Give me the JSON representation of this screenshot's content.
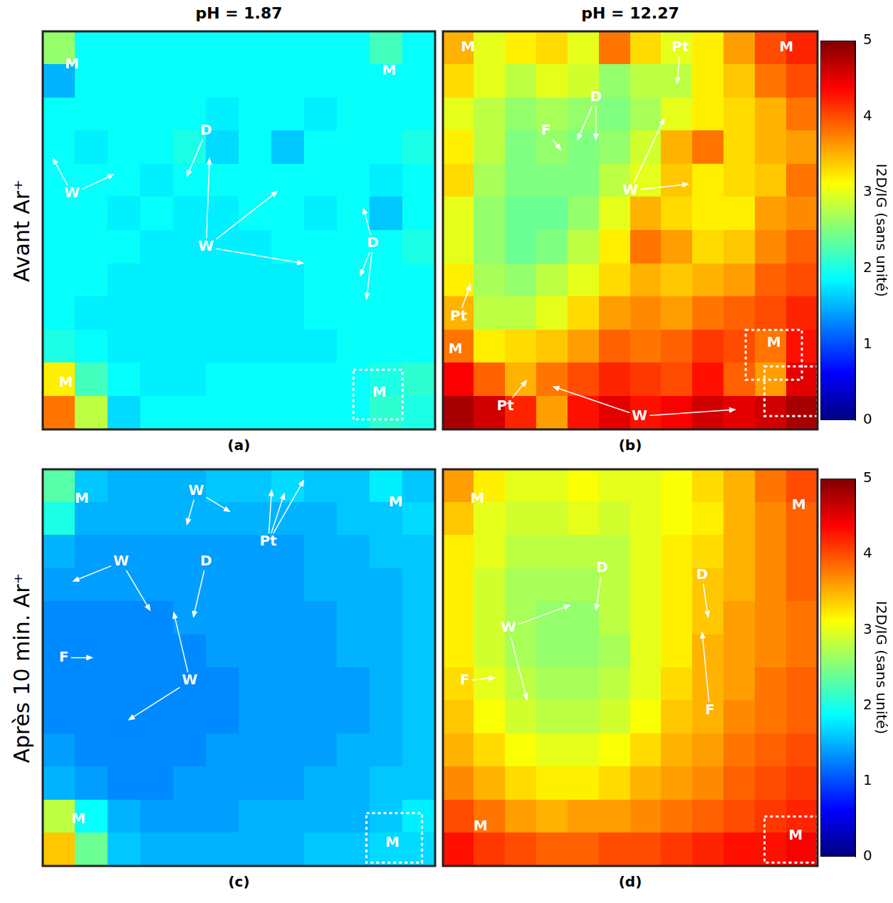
{
  "column_titles": [
    "pH = 1.87",
    "pH = 12.27"
  ],
  "row_titles": [
    "Avant Ar⁺",
    "Après 10 min. Ar⁺"
  ],
  "chart_data": [
    {
      "type": "heatmap",
      "label": "(a)",
      "xlim": [
        0,
        12
      ],
      "ylim": [
        0,
        12
      ],
      "tick_labels": false,
      "grid": false,
      "cells": [
        [
          2.6,
          1.9,
          1.9,
          1.9,
          1.9,
          1.9,
          1.9,
          1.9,
          1.9,
          1.9,
          2.2,
          1.9
        ],
        [
          1.5,
          1.9,
          1.9,
          1.9,
          1.9,
          1.9,
          1.9,
          1.9,
          1.9,
          1.9,
          1.9,
          1.9
        ],
        [
          1.9,
          1.9,
          1.9,
          1.9,
          1.9,
          1.8,
          1.9,
          1.9,
          1.8,
          1.9,
          1.9,
          1.9
        ],
        [
          1.9,
          1.8,
          1.9,
          1.9,
          2.0,
          1.7,
          1.9,
          1.6,
          1.9,
          1.9,
          1.9,
          2.0
        ],
        [
          1.9,
          1.9,
          1.9,
          1.8,
          1.9,
          1.9,
          1.9,
          1.9,
          1.9,
          1.9,
          1.8,
          1.9
        ],
        [
          1.9,
          1.9,
          1.8,
          1.9,
          1.8,
          1.8,
          1.9,
          1.9,
          1.8,
          1.9,
          1.6,
          1.9
        ],
        [
          1.9,
          1.9,
          1.9,
          1.8,
          1.8,
          1.8,
          1.8,
          1.9,
          1.9,
          1.9,
          1.9,
          2.0
        ],
        [
          1.9,
          1.9,
          1.8,
          1.8,
          1.8,
          1.8,
          1.8,
          1.8,
          1.9,
          1.9,
          1.9,
          1.9
        ],
        [
          1.9,
          1.8,
          1.8,
          1.8,
          1.8,
          1.8,
          1.8,
          1.8,
          1.9,
          1.9,
          1.9,
          1.9
        ],
        [
          2.0,
          1.9,
          1.8,
          1.8,
          1.8,
          1.8,
          1.8,
          1.8,
          1.8,
          1.9,
          1.9,
          1.9
        ],
        [
          3.2,
          2.2,
          1.9,
          1.8,
          1.8,
          1.9,
          1.9,
          1.9,
          1.9,
          1.9,
          2.0,
          2.1
        ],
        [
          3.8,
          2.8,
          1.7,
          1.9,
          1.9,
          1.9,
          1.9,
          1.9,
          1.9,
          1.9,
          2.1,
          2.0
        ]
      ],
      "annotations": [
        {
          "text": "M",
          "x": 0.9,
          "y": 1.0
        },
        {
          "text": "M",
          "x": 10.6,
          "y": 1.2
        },
        {
          "text": "M",
          "x": 0.7,
          "y": 10.6
        },
        {
          "text": "M",
          "x": 10.3,
          "y": 10.9,
          "boxes": [
            [
              9.5,
              10.2,
              11.0,
              11.7
            ]
          ]
        },
        {
          "text": "W",
          "x": 0.9,
          "y": 4.9,
          "to": [
            [
              0.3,
              3.8
            ],
            [
              2.2,
              4.3
            ]
          ]
        },
        {
          "text": "D",
          "x": 5.0,
          "y": 3.0,
          "to": [
            [
              4.4,
              4.4
            ]
          ]
        },
        {
          "text": "W",
          "x": 5.0,
          "y": 6.5,
          "to": [
            [
              5.1,
              3.8
            ],
            [
              7.2,
              4.8
            ],
            [
              8.0,
              7.0
            ]
          ]
        },
        {
          "text": "D",
          "x": 10.1,
          "y": 6.4,
          "to": [
            [
              9.8,
              5.3
            ],
            [
              9.7,
              7.4
            ],
            [
              9.9,
              8.1
            ]
          ]
        }
      ]
    },
    {
      "type": "heatmap",
      "label": "(b)",
      "xlim": [
        0,
        12
      ],
      "ylim": [
        0,
        12
      ],
      "tick_labels": false,
      "grid": false,
      "cells": [
        [
          3.5,
          3.0,
          3.2,
          3.3,
          3.0,
          3.8,
          3.3,
          3.0,
          3.2,
          3.6,
          4.0,
          4.2
        ],
        [
          3.3,
          3.0,
          2.8,
          3.0,
          2.9,
          2.6,
          2.8,
          2.8,
          3.2,
          3.4,
          3.8,
          4.0
        ],
        [
          3.0,
          2.8,
          2.6,
          2.7,
          2.6,
          2.5,
          2.7,
          3.0,
          3.2,
          3.3,
          3.5,
          3.8
        ],
        [
          3.2,
          2.8,
          2.5,
          2.6,
          2.5,
          2.6,
          2.9,
          3.5,
          3.8,
          3.3,
          3.5,
          3.6
        ],
        [
          3.3,
          2.7,
          2.5,
          2.5,
          2.5,
          2.8,
          3.0,
          3.4,
          3.2,
          3.3,
          3.4,
          3.8
        ],
        [
          3.0,
          2.6,
          2.4,
          2.4,
          2.6,
          3.0,
          3.5,
          3.3,
          3.2,
          3.2,
          3.6,
          3.7
        ],
        [
          3.0,
          2.6,
          2.4,
          2.5,
          2.8,
          3.2,
          3.8,
          3.6,
          3.3,
          3.4,
          3.7,
          3.9
        ],
        [
          3.2,
          2.7,
          2.6,
          2.8,
          3.0,
          3.3,
          3.5,
          3.4,
          3.5,
          3.6,
          3.9,
          4.0
        ],
        [
          3.5,
          2.8,
          2.8,
          3.0,
          3.3,
          3.6,
          3.7,
          3.6,
          3.8,
          3.9,
          4.0,
          4.2
        ],
        [
          3.8,
          3.2,
          3.3,
          3.4,
          3.6,
          3.9,
          3.8,
          3.9,
          4.1,
          4.0,
          3.8,
          4.3
        ],
        [
          4.4,
          3.9,
          3.5,
          3.8,
          4.0,
          4.2,
          4.1,
          4.0,
          4.3,
          3.9,
          3.6,
          4.5
        ],
        [
          4.8,
          4.6,
          4.2,
          3.6,
          4.3,
          4.5,
          4.3,
          4.4,
          4.6,
          4.5,
          4.6,
          4.8
        ]
      ],
      "colorbar": {
        "range": [
          0,
          5
        ],
        "ticks": [
          0,
          1,
          2,
          3,
          4,
          5
        ],
        "label": "I2D/IG (sans unité)"
      },
      "annotations": [
        {
          "text": "M",
          "x": 0.8,
          "y": 0.5
        },
        {
          "text": "M",
          "x": 11.0,
          "y": 0.5
        },
        {
          "text": "Pt",
          "x": 7.6,
          "y": 0.5,
          "to": [
            [
              7.5,
              1.6
            ]
          ]
        },
        {
          "text": "F",
          "x": 3.3,
          "y": 3.0,
          "to": [
            [
              3.8,
              3.6
            ]
          ]
        },
        {
          "text": "D",
          "x": 4.9,
          "y": 2.0,
          "to": [
            [
              4.3,
              3.3
            ],
            [
              4.9,
              3.3
            ]
          ]
        },
        {
          "text": "W",
          "x": 6.0,
          "y": 4.8,
          "to": [
            [
              7.1,
              2.6
            ],
            [
              7.9,
              4.6
            ]
          ]
        },
        {
          "text": "Pt",
          "x": 0.5,
          "y": 8.6,
          "to": [
            [
              0.9,
              7.6
            ]
          ]
        },
        {
          "text": "M",
          "x": 0.4,
          "y": 9.6
        },
        {
          "text": "Pt",
          "x": 2.0,
          "y": 11.3,
          "to": [
            [
              2.7,
              10.5
            ]
          ]
        },
        {
          "text": "M",
          "x": 10.6,
          "y": 9.4,
          "boxes": [
            [
              9.7,
              9.0,
              11.5,
              10.5
            ],
            [
              10.3,
              10.1,
              12.0,
              11.6
            ]
          ]
        },
        {
          "text": "W",
          "x": 6.3,
          "y": 11.6,
          "to": [
            [
              3.5,
              10.7
            ],
            [
              9.4,
              11.4
            ]
          ]
        }
      ]
    },
    {
      "type": "heatmap",
      "label": "(c)",
      "xlim": [
        0,
        12
      ],
      "ylim": [
        0,
        12
      ],
      "tick_labels": false,
      "grid": false,
      "cells": [
        [
          2.3,
          1.6,
          1.5,
          1.5,
          1.5,
          1.6,
          1.6,
          1.7,
          1.6,
          1.6,
          1.8,
          1.6
        ],
        [
          2.0,
          1.5,
          1.5,
          1.5,
          1.5,
          1.5,
          1.5,
          1.5,
          1.5,
          1.6,
          1.6,
          1.7
        ],
        [
          1.5,
          1.4,
          1.4,
          1.4,
          1.4,
          1.4,
          1.4,
          1.4,
          1.5,
          1.5,
          1.6,
          1.6
        ],
        [
          1.4,
          1.4,
          1.4,
          1.4,
          1.4,
          1.4,
          1.4,
          1.4,
          1.5,
          1.5,
          1.5,
          1.6
        ],
        [
          1.3,
          1.3,
          1.3,
          1.3,
          1.4,
          1.4,
          1.4,
          1.4,
          1.4,
          1.5,
          1.5,
          1.6
        ],
        [
          1.3,
          1.3,
          1.3,
          1.3,
          1.3,
          1.4,
          1.4,
          1.4,
          1.4,
          1.5,
          1.5,
          1.6
        ],
        [
          1.3,
          1.3,
          1.3,
          1.3,
          1.3,
          1.3,
          1.4,
          1.4,
          1.4,
          1.4,
          1.5,
          1.6
        ],
        [
          1.3,
          1.3,
          1.3,
          1.3,
          1.3,
          1.3,
          1.4,
          1.4,
          1.4,
          1.4,
          1.5,
          1.6
        ],
        [
          1.4,
          1.3,
          1.3,
          1.3,
          1.3,
          1.4,
          1.4,
          1.4,
          1.4,
          1.5,
          1.5,
          1.6
        ],
        [
          1.5,
          1.4,
          1.3,
          1.3,
          1.4,
          1.4,
          1.4,
          1.4,
          1.5,
          1.5,
          1.6,
          1.6
        ],
        [
          2.8,
          1.9,
          1.5,
          1.4,
          1.4,
          1.4,
          1.5,
          1.5,
          1.5,
          1.5,
          1.6,
          1.8
        ],
        [
          3.4,
          2.4,
          1.6,
          1.5,
          1.5,
          1.5,
          1.5,
          1.5,
          1.6,
          1.6,
          1.7,
          1.7
        ]
      ],
      "annotations": [
        {
          "text": "M",
          "x": 1.2,
          "y": 0.9
        },
        {
          "text": "M",
          "x": 10.8,
          "y": 1.0
        },
        {
          "text": "W",
          "x": 4.7,
          "y": 0.66,
          "to": [
            [
              4.4,
              1.7
            ],
            [
              5.75,
              1.3
            ]
          ]
        },
        {
          "text": "Pt",
          "x": 6.9,
          "y": 2.2,
          "to": [
            [
              7.0,
              0.6
            ],
            [
              7.4,
              0.7
            ],
            [
              8.0,
              0.3
            ]
          ]
        },
        {
          "text": "W",
          "x": 2.4,
          "y": 2.8,
          "to": [
            [
              0.9,
              3.4
            ],
            [
              3.3,
              4.3
            ]
          ]
        },
        {
          "text": "D",
          "x": 5.0,
          "y": 2.8,
          "to": [
            [
              4.6,
              4.5
            ]
          ]
        },
        {
          "text": "F",
          "x": 0.65,
          "y": 5.7,
          "to": [
            [
              1.55,
              5.7
            ]
          ]
        },
        {
          "text": "W",
          "x": 4.5,
          "y": 6.4,
          "to": [
            [
              4.0,
              4.3
            ],
            [
              2.6,
              7.6
            ]
          ]
        },
        {
          "text": "M",
          "x": 1.1,
          "y": 10.6
        },
        {
          "text": "M",
          "x": 10.7,
          "y": 11.3,
          "boxes": [
            [
              9.9,
              10.4,
              11.6,
              11.9
            ]
          ]
        }
      ]
    },
    {
      "type": "heatmap",
      "label": "(d)",
      "xlim": [
        0,
        12
      ],
      "ylim": [
        0,
        12
      ],
      "tick_labels": false,
      "grid": false,
      "cells": [
        [
          3.6,
          3.2,
          3.0,
          3.0,
          3.1,
          3.0,
          3.0,
          3.1,
          3.3,
          3.5,
          3.8,
          4.0
        ],
        [
          3.4,
          3.0,
          2.9,
          2.9,
          3.0,
          2.9,
          3.0,
          3.1,
          3.2,
          3.5,
          3.7,
          3.9
        ],
        [
          3.2,
          3.0,
          2.8,
          2.8,
          2.8,
          2.8,
          3.0,
          3.2,
          3.3,
          3.5,
          3.7,
          3.9
        ],
        [
          3.2,
          2.9,
          2.7,
          2.7,
          2.7,
          2.8,
          3.0,
          3.2,
          3.4,
          3.5,
          3.7,
          3.9
        ],
        [
          3.2,
          2.9,
          2.7,
          2.6,
          2.6,
          2.8,
          3.0,
          3.2,
          3.4,
          3.6,
          3.7,
          3.8
        ],
        [
          3.2,
          2.9,
          2.7,
          2.6,
          2.6,
          2.7,
          3.0,
          3.2,
          3.5,
          3.6,
          3.7,
          3.8
        ],
        [
          3.3,
          3.0,
          2.8,
          2.7,
          2.7,
          2.8,
          3.0,
          3.3,
          3.5,
          3.6,
          3.8,
          3.9
        ],
        [
          3.4,
          3.1,
          2.9,
          2.8,
          2.8,
          2.9,
          3.1,
          3.4,
          3.5,
          3.7,
          3.8,
          3.9
        ],
        [
          3.5,
          3.3,
          3.1,
          3.0,
          3.0,
          3.1,
          3.3,
          3.5,
          3.6,
          3.8,
          3.9,
          4.0
        ],
        [
          3.7,
          3.5,
          3.3,
          3.2,
          3.2,
          3.3,
          3.5,
          3.6,
          3.7,
          3.9,
          4.0,
          4.1
        ],
        [
          4.0,
          3.8,
          3.6,
          3.5,
          3.6,
          3.6,
          3.7,
          3.8,
          3.9,
          4.0,
          4.1,
          4.2
        ],
        [
          4.3,
          4.1,
          4.0,
          3.9,
          3.9,
          4.0,
          4.0,
          4.1,
          4.2,
          4.3,
          4.3,
          4.4
        ]
      ],
      "colorbar": {
        "range": [
          0,
          5
        ],
        "ticks": [
          0,
          1,
          2,
          3,
          4,
          5
        ],
        "label": "I2D/IG (sans unité)"
      },
      "annotations": [
        {
          "text": "M",
          "x": 1.1,
          "y": 0.9
        },
        {
          "text": "M",
          "x": 11.4,
          "y": 1.1
        },
        {
          "text": "D",
          "x": 5.1,
          "y": 3.0,
          "to": [
            [
              4.9,
              4.3
            ]
          ]
        },
        {
          "text": "D",
          "x": 8.3,
          "y": 3.2,
          "to": [
            [
              8.5,
              4.5
            ]
          ]
        },
        {
          "text": "W",
          "x": 2.1,
          "y": 4.8,
          "to": [
            [
              4.1,
              4.1
            ],
            [
              2.7,
              7.0
            ]
          ]
        },
        {
          "text": "F",
          "x": 0.7,
          "y": 6.4,
          "to": [
            [
              1.7,
              6.3
            ]
          ]
        },
        {
          "text": "F",
          "x": 8.55,
          "y": 7.3,
          "to": [
            [
              8.3,
              4.9
            ]
          ]
        },
        {
          "text": "M",
          "x": 1.2,
          "y": 10.8
        },
        {
          "text": "M",
          "x": 11.3,
          "y": 11.1,
          "boxes": [
            [
              10.3,
              10.5,
              12.0,
              11.9
            ]
          ]
        }
      ]
    }
  ]
}
